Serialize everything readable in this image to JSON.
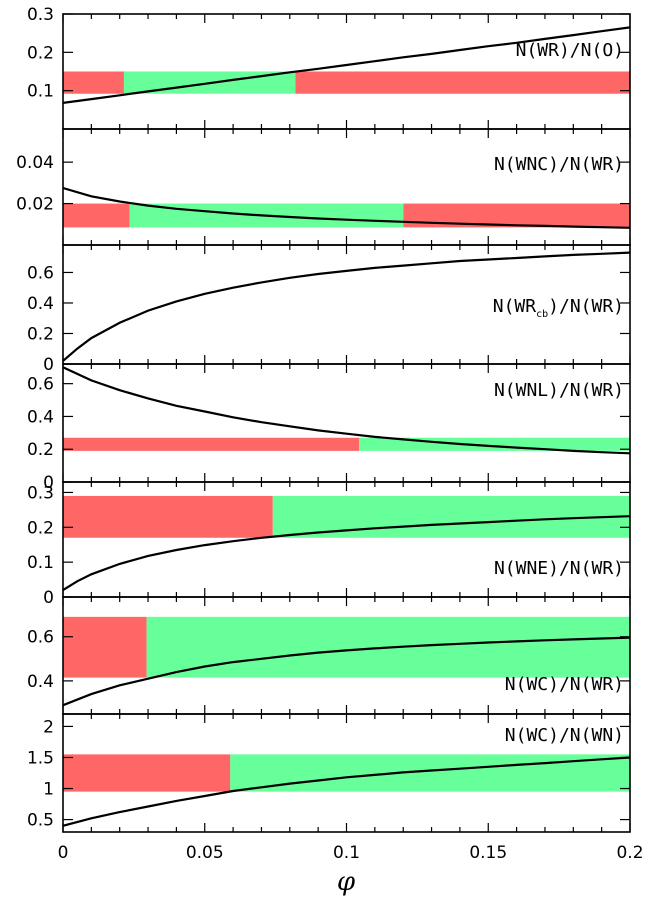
{
  "colors": {
    "allowed": "#66ff99",
    "excluded": "#ff6666",
    "curve": "#000000"
  },
  "chart_data": {
    "type": "line",
    "xlabel": "φ",
    "x_range": [
      0,
      0.2
    ],
    "x_ticks": [
      0,
      0.05,
      0.1,
      0.15,
      0.2
    ],
    "x_tick_labels": [
      "0",
      "0.05",
      "0.1",
      "0.15",
      "0.2"
    ],
    "panels": [
      {
        "label": "N(WR)/N(O)",
        "ylim": [
          0,
          0.3
        ],
        "y_ticks": [
          0.1,
          0.2,
          0.3
        ],
        "y_tick_labels": [
          "0.1",
          "0.2",
          "0.3"
        ],
        "band": {
          "y": [
            0.092,
            0.15
          ],
          "excluded_x": [
            [
              0,
              0.0215
            ],
            [
              0.082,
              0.2
            ]
          ],
          "allowed_x": [
            0.0215,
            0.082
          ]
        },
        "curve": {
          "x": [
            0,
            0.01,
            0.02,
            0.03,
            0.04,
            0.05,
            0.06,
            0.07,
            0.08,
            0.09,
            0.1,
            0.11,
            0.12,
            0.13,
            0.14,
            0.15,
            0.16,
            0.17,
            0.18,
            0.19,
            0.2
          ],
          "y": [
            0.068,
            0.078,
            0.088,
            0.098,
            0.108,
            0.118,
            0.128,
            0.138,
            0.148,
            0.157,
            0.167,
            0.177,
            0.187,
            0.196,
            0.206,
            0.216,
            0.225,
            0.235,
            0.245,
            0.255,
            0.265
          ]
        }
      },
      {
        "label": "N(WNC)/N(WR)",
        "ylim": [
          0,
          0.056
        ],
        "y_ticks": [
          0.02,
          0.04
        ],
        "y_tick_labels": [
          "0.02",
          "0.04"
        ],
        "band": {
          "y": [
            0.0085,
            0.02
          ],
          "excluded_x": [
            [
              0,
              0.0235
            ],
            [
              0.12,
              0.2
            ]
          ],
          "allowed_x": [
            0.0235,
            0.12
          ]
        },
        "curve": {
          "x": [
            0,
            0.01,
            0.02,
            0.03,
            0.04,
            0.05,
            0.06,
            0.07,
            0.08,
            0.09,
            0.1,
            0.11,
            0.12,
            0.13,
            0.14,
            0.15,
            0.16,
            0.17,
            0.18,
            0.19,
            0.2
          ],
          "y": [
            0.0275,
            0.0235,
            0.021,
            0.019,
            0.0175,
            0.0163,
            0.0152,
            0.0143,
            0.0135,
            0.0128,
            0.0122,
            0.0117,
            0.0112,
            0.0107,
            0.0103,
            0.0099,
            0.0095,
            0.0092,
            0.0089,
            0.0086,
            0.0083
          ]
        }
      },
      {
        "label": "N(WR",
        "label_sub": "cb",
        "label_end": ")/N(WR)",
        "ylim": [
          0,
          0.78
        ],
        "y_ticks": [
          0,
          0.2,
          0.4,
          0.6
        ],
        "y_tick_labels": [
          "0",
          "0.2",
          "0.4",
          "0.6"
        ],
        "band": null,
        "curve": {
          "x": [
            0,
            0.005,
            0.01,
            0.02,
            0.03,
            0.04,
            0.05,
            0.06,
            0.07,
            0.08,
            0.09,
            0.1,
            0.11,
            0.12,
            0.13,
            0.14,
            0.15,
            0.16,
            0.17,
            0.18,
            0.19,
            0.2
          ],
          "y": [
            0.02,
            0.1,
            0.17,
            0.27,
            0.35,
            0.41,
            0.46,
            0.5,
            0.535,
            0.565,
            0.59,
            0.61,
            0.63,
            0.645,
            0.66,
            0.675,
            0.685,
            0.695,
            0.705,
            0.715,
            0.722,
            0.73
          ]
        }
      },
      {
        "label": "N(WNL)/N(WR)",
        "ylim": [
          0,
          0.72
        ],
        "y_ticks": [
          0,
          0.2,
          0.4,
          0.6
        ],
        "y_tick_labels": [
          "0",
          "0.2",
          "0.4",
          "0.6"
        ],
        "band": {
          "y": [
            0.19,
            0.27
          ],
          "excluded_x": [
            [
              0,
              0.1045
            ]
          ],
          "allowed_x": [
            0.1045,
            0.2
          ]
        },
        "curve": {
          "x": [
            0,
            0.01,
            0.02,
            0.03,
            0.04,
            0.05,
            0.06,
            0.07,
            0.08,
            0.09,
            0.1,
            0.11,
            0.12,
            0.13,
            0.14,
            0.15,
            0.16,
            0.17,
            0.18,
            0.19,
            0.2
          ],
          "y": [
            0.7,
            0.62,
            0.56,
            0.51,
            0.465,
            0.43,
            0.395,
            0.365,
            0.34,
            0.315,
            0.295,
            0.275,
            0.26,
            0.245,
            0.232,
            0.22,
            0.21,
            0.2,
            0.19,
            0.182,
            0.175
          ]
        }
      },
      {
        "label": "N(WNE)/N(WR)",
        "ylim": [
          0,
          0.33
        ],
        "y_ticks": [
          0,
          0.1,
          0.2,
          0.3
        ],
        "y_tick_labels": [
          "0",
          "0.1",
          "0.2",
          "0.3"
        ],
        "band": {
          "y": [
            0.17,
            0.29
          ],
          "excluded_x": [
            [
              0,
              0.074
            ]
          ],
          "allowed_x": [
            0.074,
            0.2
          ]
        },
        "curve": {
          "x": [
            0,
            0.005,
            0.01,
            0.02,
            0.03,
            0.04,
            0.05,
            0.06,
            0.07,
            0.08,
            0.09,
            0.1,
            0.11,
            0.12,
            0.13,
            0.14,
            0.15,
            0.16,
            0.17,
            0.18,
            0.19,
            0.2
          ],
          "y": [
            0.02,
            0.045,
            0.065,
            0.095,
            0.118,
            0.135,
            0.149,
            0.16,
            0.17,
            0.178,
            0.185,
            0.191,
            0.197,
            0.202,
            0.207,
            0.211,
            0.215,
            0.219,
            0.223,
            0.226,
            0.229,
            0.232
          ]
        }
      },
      {
        "label": "N(WC)/N(WR)",
        "ylim": [
          0.25,
          0.78
        ],
        "y_ticks": [
          0.4,
          0.6
        ],
        "y_tick_labels": [
          "0.4",
          "0.6"
        ],
        "band": {
          "y": [
            0.415,
            0.69
          ],
          "excluded_x": [
            [
              0,
              0.0295
            ]
          ],
          "allowed_x": [
            0.0295,
            0.2
          ]
        },
        "curve": {
          "x": [
            0,
            0.01,
            0.02,
            0.03,
            0.04,
            0.05,
            0.06,
            0.07,
            0.08,
            0.09,
            0.1,
            0.11,
            0.12,
            0.13,
            0.14,
            0.15,
            0.16,
            0.17,
            0.18,
            0.19,
            0.2
          ],
          "y": [
            0.29,
            0.34,
            0.38,
            0.41,
            0.44,
            0.465,
            0.485,
            0.5,
            0.515,
            0.528,
            0.538,
            0.547,
            0.555,
            0.562,
            0.568,
            0.574,
            0.579,
            0.584,
            0.588,
            0.592,
            0.596
          ]
        }
      },
      {
        "label": "N(WC)/N(WN)",
        "ylim": [
          0.3,
          2.2
        ],
        "y_ticks": [
          0.5,
          1,
          1.5,
          2
        ],
        "y_tick_labels": [
          "0.5",
          "1",
          "1.5",
          "2"
        ],
        "band": {
          "y": [
            0.95,
            1.55
          ],
          "excluded_x": [
            [
              0,
              0.059
            ]
          ],
          "allowed_x": [
            0.059,
            0.2
          ]
        },
        "curve": {
          "x": [
            0,
            0.01,
            0.02,
            0.03,
            0.04,
            0.05,
            0.06,
            0.07,
            0.08,
            0.09,
            0.1,
            0.11,
            0.12,
            0.13,
            0.14,
            0.15,
            0.16,
            0.17,
            0.18,
            0.19,
            0.2
          ],
          "y": [
            0.4,
            0.52,
            0.62,
            0.71,
            0.8,
            0.88,
            0.96,
            1.02,
            1.08,
            1.13,
            1.18,
            1.22,
            1.26,
            1.29,
            1.32,
            1.35,
            1.38,
            1.41,
            1.44,
            1.47,
            1.5
          ]
        }
      }
    ]
  }
}
